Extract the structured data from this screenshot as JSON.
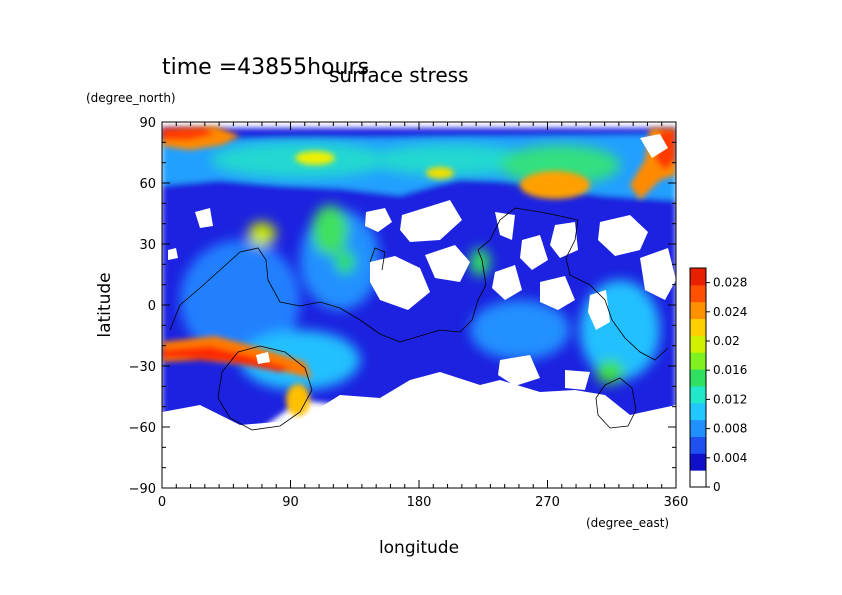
{
  "header": {
    "time_label": "time =43855hours",
    "title": "surface stress"
  },
  "chart_data": {
    "type": "heatmap",
    "title": "surface stress",
    "subtitle": "time =43855hours",
    "xlabel": "longitude",
    "xunit": "(degree_east)",
    "ylabel": "latitude",
    "yunit": "(degree_north)",
    "xlim": [
      0,
      360
    ],
    "ylim": [
      -90,
      90
    ],
    "x_ticks": [
      0,
      90,
      180,
      270,
      360
    ],
    "y_ticks": [
      -90,
      -60,
      -30,
      0,
      30,
      60,
      90
    ],
    "colorbar": {
      "min": 0,
      "max": 0.03,
      "ticks": [
        "0",
        "0.004",
        "0.008",
        "0.012",
        "0.016",
        "0.02",
        "0.024",
        "0.028"
      ],
      "colors": [
        "#ffffff",
        "#1010c8",
        "#2050f0",
        "#2090ff",
        "#20c8ff",
        "#20e8c8",
        "#30e060",
        "#80f020",
        "#d0f000",
        "#ffd000",
        "#ff9000",
        "#ff5000",
        "#e82000"
      ]
    },
    "field_samples": [
      {
        "lon": 30,
        "lat": 80,
        "value": 0.028
      },
      {
        "lon": 120,
        "lat": 50,
        "value": 0.016
      },
      {
        "lon": 270,
        "lat": 60,
        "value": 0.022
      },
      {
        "lon": 335,
        "lat": 60,
        "value": 0.028
      },
      {
        "lon": 60,
        "lat": -35,
        "value": 0.026
      },
      {
        "lon": 80,
        "lat": -40,
        "value": 0.018
      },
      {
        "lon": 60,
        "lat": 30,
        "value": 0.016
      },
      {
        "lon": 320,
        "lat": -30,
        "value": 0.018
      },
      {
        "lon": 150,
        "lat": -50,
        "value": 0
      },
      {
        "lon": 230,
        "lat": -40,
        "value": 0
      }
    ]
  }
}
